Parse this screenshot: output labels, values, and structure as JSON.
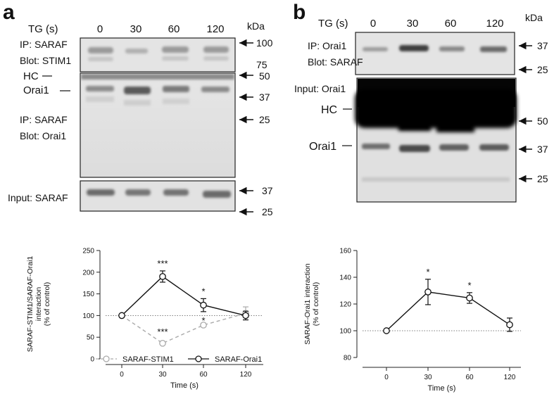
{
  "panel_a": {
    "letter": "a",
    "tg_label": "TG (s)",
    "times": [
      "0",
      "30",
      "60",
      "120"
    ],
    "kda": "kDa",
    "blot1": {
      "line1": "IP: SARAF",
      "line2": "Blot: STIM1",
      "markers": [
        "100",
        "75"
      ]
    },
    "blot2": {
      "hc": "HC",
      "orai1": "Orai1",
      "line1": "IP: SARAF",
      "line2": "Blot: Orai1",
      "markers": [
        "50",
        "37",
        "25"
      ]
    },
    "blot3": {
      "label": "Input: SARAF",
      "markers": [
        "37",
        "25"
      ]
    }
  },
  "panel_b": {
    "letter": "b",
    "tg_label": "TG (s)",
    "times": [
      "0",
      "30",
      "60",
      "120"
    ],
    "kda": "kDa",
    "blot1": {
      "line1": "IP: Orai1",
      "line2": "Blot: SARAF",
      "markers": [
        "37",
        "25"
      ]
    },
    "blot2": {
      "input": "Input: Orai1",
      "hc": "HC",
      "orai1": "Orai1",
      "markers": [
        "50",
        "37",
        "25"
      ]
    }
  },
  "chart_data": [
    {
      "type": "line",
      "ylabel": "SARAF-STIM1/SARAF-Orai1 interaction (% of control)",
      "ylabel_lines": [
        "SARAF-STIM1/SARAF-Orai1",
        "interaction",
        "(% of control)"
      ],
      "xlabel": "Time (s)",
      "x": [
        0,
        30,
        60,
        120
      ],
      "xticks": [
        "0",
        "30",
        "60",
        "120"
      ],
      "ylim": [
        0,
        250
      ],
      "yticks": [
        "0",
        "50",
        "100",
        "150",
        "200",
        "250"
      ],
      "reference_line": 100,
      "series": [
        {
          "name": "SARAF-STIM1",
          "values": [
            100,
            36,
            78,
            105
          ],
          "errors": [
            0,
            3,
            4,
            15
          ],
          "annotations": [
            "",
            "***",
            "*",
            ""
          ],
          "color": "#aaaaaa",
          "dashed": true
        },
        {
          "name": "SARAF-Orai1",
          "values": [
            100,
            190,
            124,
            100
          ],
          "errors": [
            0,
            13,
            15,
            10
          ],
          "annotations": [
            "",
            "***",
            "*",
            ""
          ],
          "color": "#111111",
          "dashed": false
        }
      ],
      "legend": "bottom"
    },
    {
      "type": "line",
      "ylabel": "SARAF-Orai1 interaction (% of control)",
      "ylabel_lines": [
        "SARAF-Orai1 interaction",
        "(% of control)"
      ],
      "xlabel": "Time (s)",
      "x": [
        0,
        30,
        60,
        120
      ],
      "xticks": [
        "0",
        "30",
        "60",
        "120"
      ],
      "ylim": [
        80,
        160
      ],
      "yticks": [
        "80",
        "100",
        "120",
        "140",
        "160"
      ],
      "reference_line": 100,
      "series": [
        {
          "values": [
            100,
            129,
            124.5,
            104.5
          ],
          "errors": [
            0,
            9.5,
            4,
            5
          ],
          "annotations": [
            "",
            "*",
            "*",
            ""
          ],
          "color": "#111111",
          "dashed": false
        }
      ]
    }
  ]
}
